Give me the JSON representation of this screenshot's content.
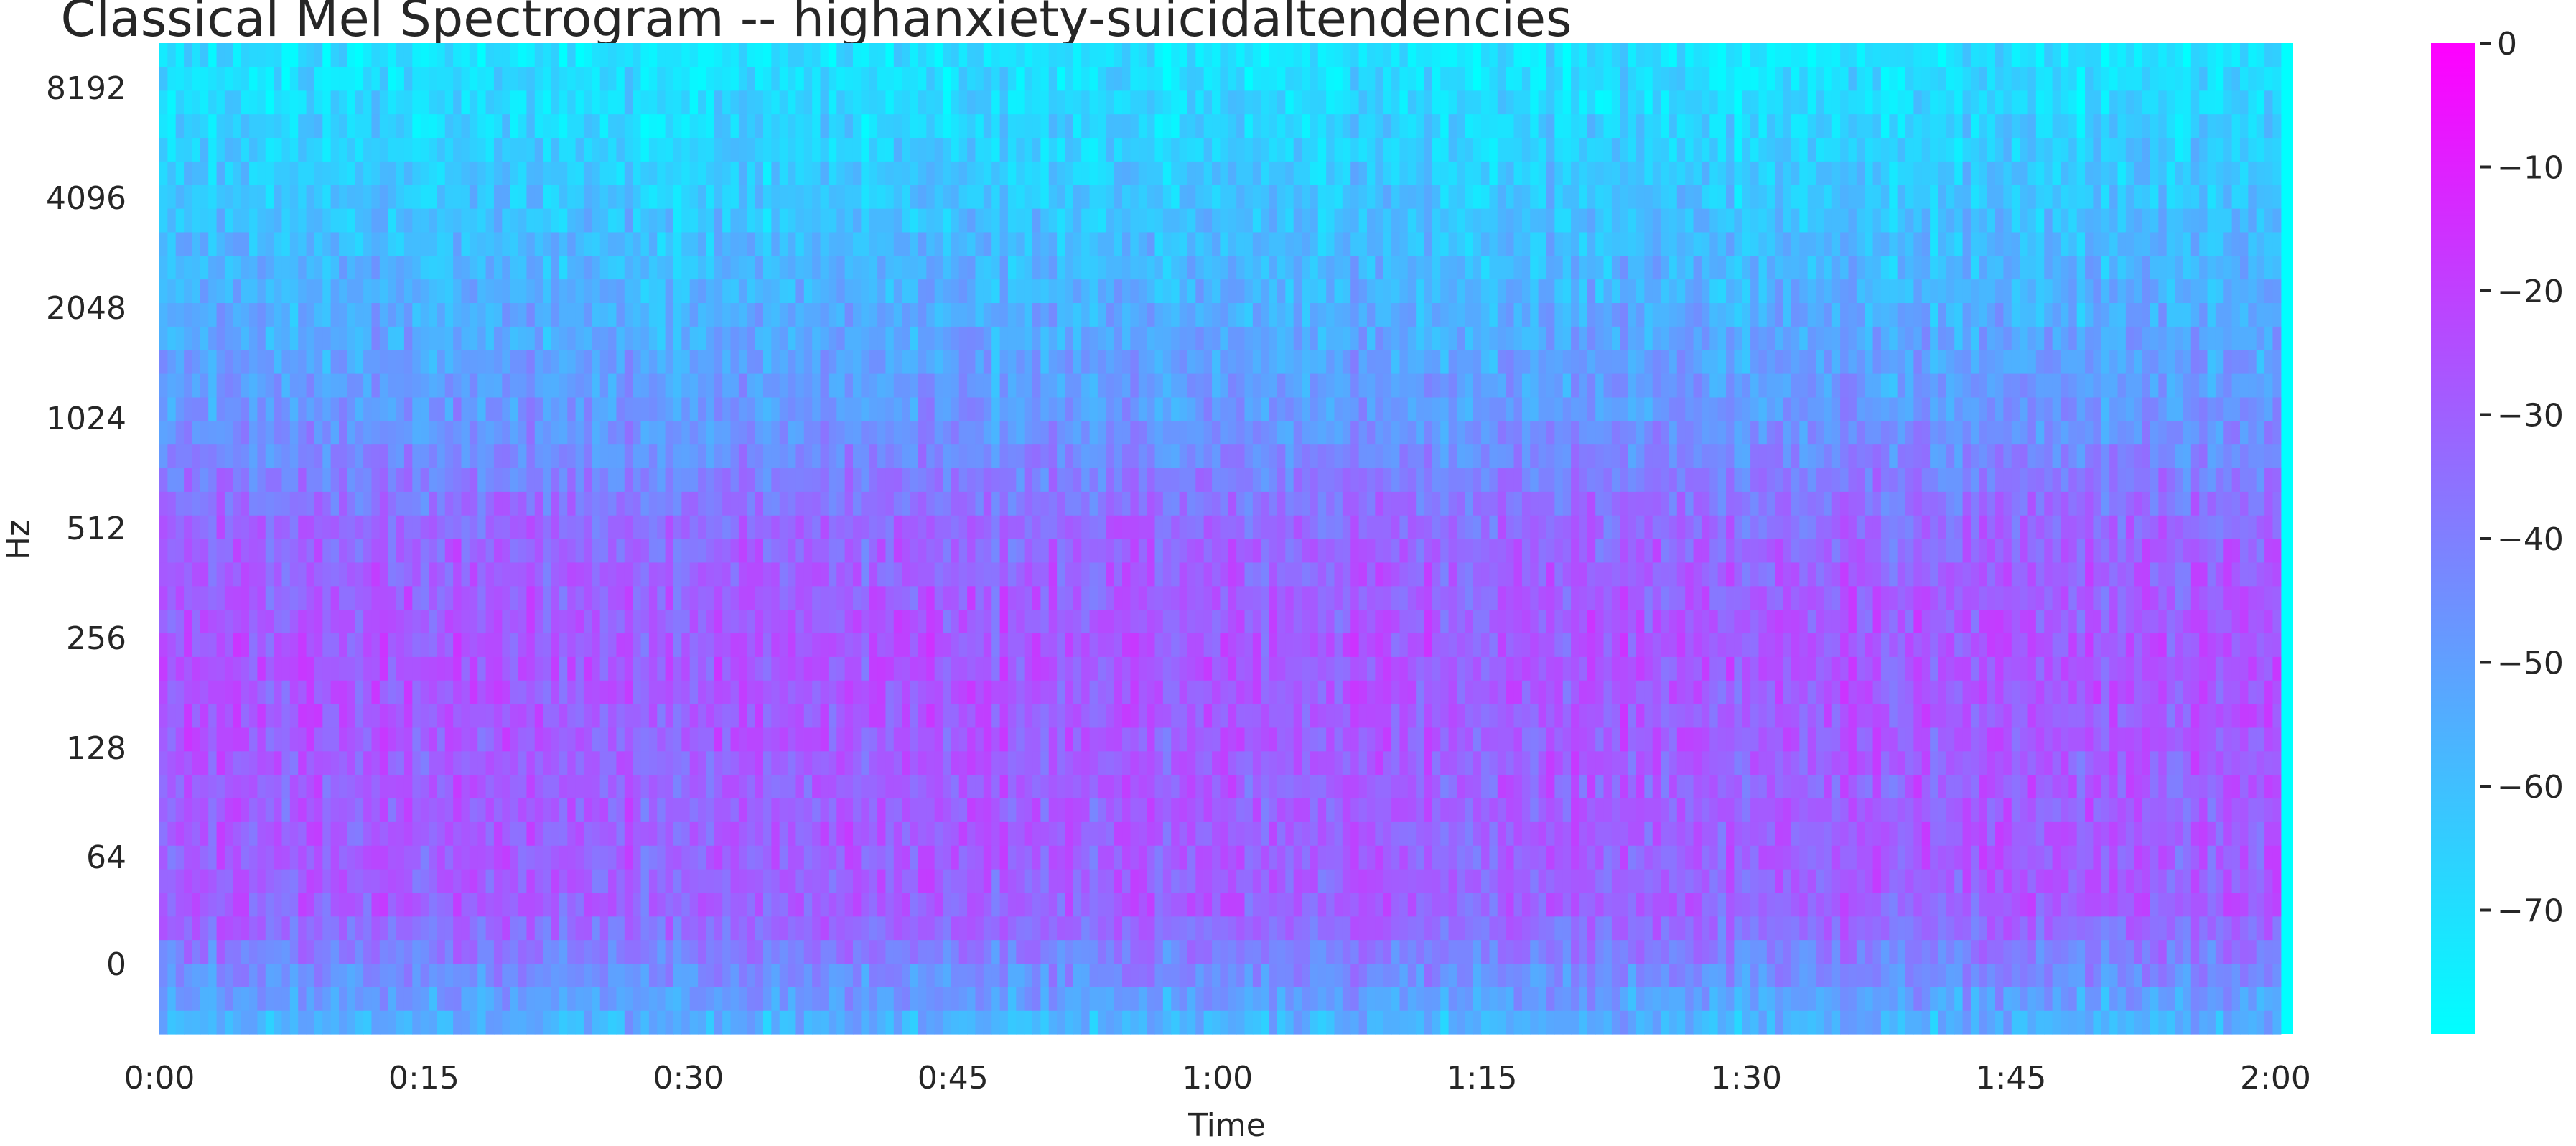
{
  "chart_data": {
    "type": "heatmap",
    "title": "Classical Mel Spectrogram -- highanxiety-suicidaltendencies",
    "xlabel": "Time",
    "ylabel": "Hz",
    "x_ticks": [
      {
        "label": "0:00",
        "seconds": 0
      },
      {
        "label": "0:15",
        "seconds": 15
      },
      {
        "label": "0:30",
        "seconds": 30
      },
      {
        "label": "0:45",
        "seconds": 45
      },
      {
        "label": "1:00",
        "seconds": 60
      },
      {
        "label": "1:15",
        "seconds": 75
      },
      {
        "label": "1:30",
        "seconds": 90
      },
      {
        "label": "1:45",
        "seconds": 105
      },
      {
        "label": "2:00",
        "seconds": 120
      }
    ],
    "y_ticks": [
      0,
      64,
      128,
      256,
      512,
      1024,
      2048,
      4096,
      8192
    ],
    "y_scale": "mel",
    "xlim_seconds": [
      0,
      121
    ],
    "colorbar": {
      "ticks": [
        0,
        -10,
        -20,
        -30,
        -40,
        -50,
        -60,
        -70
      ],
      "range_db": [
        -80,
        0
      ],
      "colormap": "cool",
      "color_low": "#00ffff",
      "color_high": "#ff00ff"
    },
    "spectrum_profile": [
      {
        "hz": 0,
        "mean_db": -58
      },
      {
        "hz": 64,
        "mean_db": -30
      },
      {
        "hz": 128,
        "mean_db": -30
      },
      {
        "hz": 256,
        "mean_db": -27
      },
      {
        "hz": 512,
        "mean_db": -32
      },
      {
        "hz": 1024,
        "mean_db": -48
      },
      {
        "hz": 2048,
        "mean_db": -56
      },
      {
        "hz": 4096,
        "mean_db": -64
      },
      {
        "hz": 8192,
        "mean_db": -72
      }
    ],
    "end_of_audio_seconds": 120.3
  }
}
